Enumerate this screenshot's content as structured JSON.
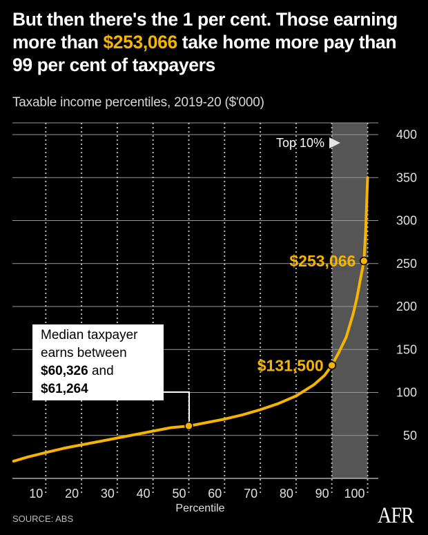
{
  "headline": {
    "part1": "But then there's the 1 per cent. Those earning more than ",
    "amount": "$253,066",
    "part2": " take home more pay than 99 per cent of taxpayers"
  },
  "subtitle": "Taxable income percentiles, 2019-20 ($'000)",
  "callout": {
    "line1": "Median taxpayer",
    "line2": "earns between",
    "value1": "$60,326",
    "and": " and",
    "value2": "$61,264"
  },
  "source": "SOURCE: ABS",
  "logo": "AFR",
  "colors": {
    "background": "#000000",
    "line": "#f5b400",
    "highlight": "#f5b400",
    "band": "#555555",
    "grid": "#bbbbbb",
    "text": "#ffffff"
  },
  "chart_data": {
    "type": "line",
    "title": "Taxable income percentiles, 2019-20 ($'000)",
    "xlabel": "Percentile",
    "ylabel": "",
    "xlim": [
      1,
      100
    ],
    "ylim": [
      0,
      400
    ],
    "x_ticks": [
      10,
      20,
      30,
      40,
      50,
      60,
      70,
      80,
      90,
      100
    ],
    "y_ticks": [
      50,
      100,
      150,
      200,
      250,
      300,
      350,
      400
    ],
    "grid": "vertical dotted lines at each x tick, horizontal lines at each y tick",
    "band": {
      "label": "Top 10%",
      "from": 90,
      "to": 100
    },
    "series": [
      {
        "x": [
          1,
          5,
          10,
          15,
          20,
          25,
          30,
          35,
          40,
          45,
          50,
          55,
          60,
          65,
          70,
          75,
          80,
          85,
          88,
          90,
          92,
          94,
          96,
          97,
          98,
          99,
          99.5,
          100
        ],
        "values": [
          20,
          25,
          30,
          35,
          39,
          43,
          47,
          51,
          55,
          59,
          61,
          65,
          69,
          74,
          80,
          87,
          96,
          109,
          120,
          131.5,
          147,
          164,
          192,
          210,
          232,
          253,
          292,
          350
        ]
      }
    ],
    "highlights": [
      {
        "x": 50,
        "y": 61,
        "label": ""
      },
      {
        "x": 90,
        "y": 131.5,
        "label": "$131,500"
      },
      {
        "x": 99,
        "y": 253,
        "label": "$253,066"
      }
    ]
  }
}
